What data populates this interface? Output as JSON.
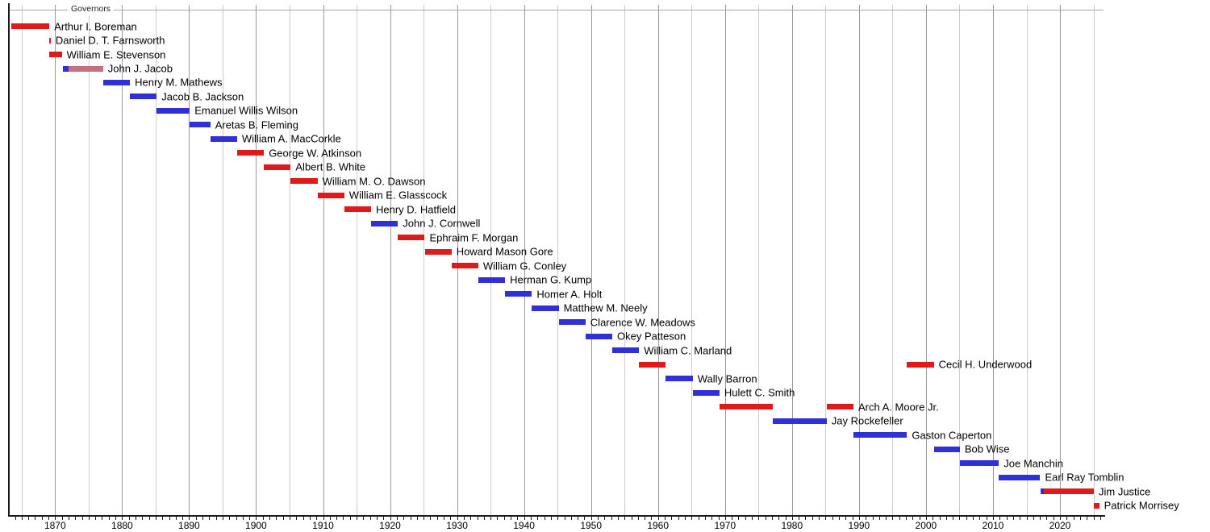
{
  "header": {
    "title": "Governors"
  },
  "colors": {
    "red": "#e01a1a",
    "blue": "#3030d9",
    "claret": "#c4707e",
    "grid_major": "#999999",
    "grid_minor": "#cccccc",
    "axis_line": "#1a1a1a",
    "top_line": "#aaaaaa",
    "label_text": "#000000"
  },
  "chart_data": {
    "type": "timeline",
    "title": "Governors",
    "x_axis": {
      "start": 1863.1,
      "end": 2026.5,
      "minor_tick_interval_years": 1,
      "grid_interval_years": 5,
      "decade_labels": [
        "1870",
        "1880",
        "1890",
        "1900",
        "1910",
        "1920",
        "1930",
        "1940",
        "1950",
        "1960",
        "1970",
        "1980",
        "1990",
        "2000",
        "2010",
        "2020"
      ]
    },
    "rows": [
      {
        "name": "Arthur I. Boreman",
        "segments": [
          {
            "from": 1863.5,
            "to": 1869.15,
            "color": "red"
          }
        ]
      },
      {
        "name": "Daniel D. T. Farnsworth",
        "segments": [
          {
            "from": 1869.15,
            "to": 1869.35,
            "color": "red"
          }
        ]
      },
      {
        "name": "William E. Stevenson",
        "segments": [
          {
            "from": 1869.17,
            "to": 1871.0,
            "color": "red"
          }
        ]
      },
      {
        "name": "John J. Jacob",
        "segments": [
          {
            "from": 1871.17,
            "to": 1872.0,
            "color": "blue"
          },
          {
            "from": 1872.0,
            "to": 1877.17,
            "color": "claret"
          }
        ]
      },
      {
        "name": "Henry M. Mathews",
        "segments": [
          {
            "from": 1877.17,
            "to": 1881.17,
            "color": "blue"
          }
        ]
      },
      {
        "name": "Jacob B. Jackson",
        "segments": [
          {
            "from": 1881.17,
            "to": 1885.17,
            "color": "blue"
          }
        ]
      },
      {
        "name": "Emanuel Willis Wilson",
        "segments": [
          {
            "from": 1885.17,
            "to": 1890.1,
            "color": "blue"
          }
        ]
      },
      {
        "name": "Aretas B. Fleming",
        "segments": [
          {
            "from": 1890.1,
            "to": 1893.17,
            "color": "blue"
          }
        ]
      },
      {
        "name": "William A. MacCorkle",
        "segments": [
          {
            "from": 1893.17,
            "to": 1897.17,
            "color": "blue"
          }
        ]
      },
      {
        "name": "George W. Atkinson",
        "segments": [
          {
            "from": 1897.17,
            "to": 1901.17,
            "color": "red"
          }
        ]
      },
      {
        "name": "Albert B. White",
        "segments": [
          {
            "from": 1901.17,
            "to": 1905.17,
            "color": "red"
          }
        ]
      },
      {
        "name": "William M. O. Dawson",
        "segments": [
          {
            "from": 1905.17,
            "to": 1909.17,
            "color": "red"
          }
        ]
      },
      {
        "name": "William E. Glasscock",
        "segments": [
          {
            "from": 1909.17,
            "to": 1913.17,
            "color": "red"
          }
        ]
      },
      {
        "name": "Henry D. Hatfield",
        "segments": [
          {
            "from": 1913.17,
            "to": 1917.17,
            "color": "red"
          }
        ]
      },
      {
        "name": "John J. Cornwell",
        "segments": [
          {
            "from": 1917.17,
            "to": 1921.17,
            "color": "blue"
          }
        ]
      },
      {
        "name": "Ephraim F. Morgan",
        "segments": [
          {
            "from": 1921.17,
            "to": 1925.17,
            "color": "red"
          }
        ]
      },
      {
        "name": "Howard Mason Gore",
        "segments": [
          {
            "from": 1925.17,
            "to": 1929.17,
            "color": "red"
          }
        ]
      },
      {
        "name": "William G. Conley",
        "segments": [
          {
            "from": 1929.17,
            "to": 1933.17,
            "color": "red"
          }
        ]
      },
      {
        "name": "Herman G. Kump",
        "segments": [
          {
            "from": 1933.17,
            "to": 1937.17,
            "color": "blue"
          }
        ]
      },
      {
        "name": "Homer A. Holt",
        "segments": [
          {
            "from": 1937.17,
            "to": 1941.17,
            "color": "blue"
          }
        ]
      },
      {
        "name": "Matthew M. Neely",
        "segments": [
          {
            "from": 1941.17,
            "to": 1945.17,
            "color": "blue"
          }
        ]
      },
      {
        "name": "Clarence W. Meadows",
        "segments": [
          {
            "from": 1945.17,
            "to": 1949.17,
            "color": "blue"
          }
        ]
      },
      {
        "name": "Okey Patteson",
        "segments": [
          {
            "from": 1949.17,
            "to": 1953.17,
            "color": "blue"
          }
        ]
      },
      {
        "name": "William C. Marland",
        "segments": [
          {
            "from": 1953.17,
            "to": 1957.17,
            "color": "blue"
          }
        ]
      },
      {
        "name": "Cecil H. Underwood",
        "segments": [
          {
            "from": 1957.17,
            "to": 1961.17,
            "color": "red"
          },
          {
            "from": 1997.17,
            "to": 2001.17,
            "color": "red"
          }
        ]
      },
      {
        "name": "Wally Barron",
        "segments": [
          {
            "from": 1961.17,
            "to": 1965.17,
            "color": "blue"
          }
        ]
      },
      {
        "name": "Hulett C. Smith",
        "segments": [
          {
            "from": 1965.17,
            "to": 1969.17,
            "color": "blue"
          }
        ]
      },
      {
        "name": "Arch A. Moore Jr.",
        "segments": [
          {
            "from": 1969.17,
            "to": 1977.17,
            "color": "red"
          },
          {
            "from": 1985.17,
            "to": 1989.17,
            "color": "red"
          }
        ]
      },
      {
        "name": "Jay Rockefeller",
        "segments": [
          {
            "from": 1977.17,
            "to": 1985.17,
            "color": "blue"
          }
        ]
      },
      {
        "name": "Gaston Caperton",
        "segments": [
          {
            "from": 1989.17,
            "to": 1997.17,
            "color": "blue"
          }
        ]
      },
      {
        "name": "Bob Wise",
        "segments": [
          {
            "from": 2001.17,
            "to": 2005.05,
            "color": "blue"
          }
        ]
      },
      {
        "name": "Joe Manchin",
        "segments": [
          {
            "from": 2005.05,
            "to": 2010.88,
            "color": "blue"
          }
        ]
      },
      {
        "name": "Earl Ray Tomblin",
        "segments": [
          {
            "from": 2010.88,
            "to": 2017.05,
            "color": "blue"
          }
        ]
      },
      {
        "name": "Jim Justice",
        "segments": [
          {
            "from": 2017.05,
            "to": 2017.6,
            "color": "blue"
          },
          {
            "from": 2017.6,
            "to": 2025.05,
            "color": "red"
          }
        ]
      },
      {
        "name": "Patrick Morrisey",
        "segments": [
          {
            "from": 2025.05,
            "to": 2025.85,
            "color": "red"
          }
        ]
      }
    ]
  }
}
